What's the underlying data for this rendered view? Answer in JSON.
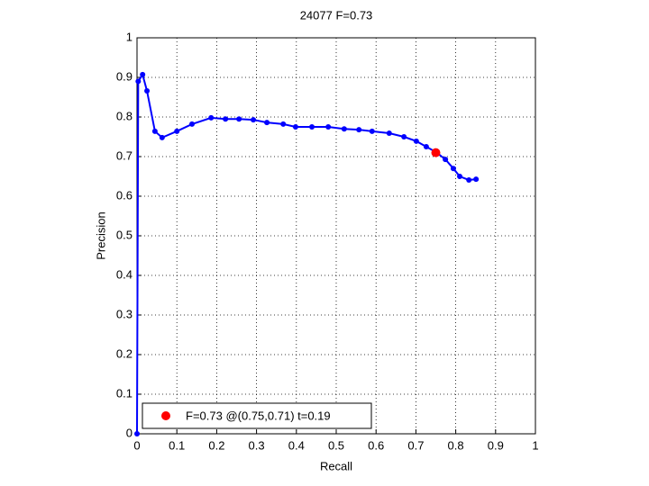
{
  "chart_data": {
    "type": "line",
    "title": "24077 F=0.73",
    "x_label": "Recall",
    "y_label": "Precision",
    "x": [
      0,
      0.003,
      0.014,
      0.025,
      0.045,
      0.063,
      0.1,
      0.138,
      0.186,
      0.222,
      0.256,
      0.292,
      0.326,
      0.367,
      0.398,
      0.439,
      0.48,
      0.52,
      0.557,
      0.59,
      0.633,
      0.67,
      0.701,
      0.726,
      0.751,
      0.774,
      0.794,
      0.81,
      0.833,
      0.851
    ],
    "series": [
      {
        "color": "#0000ff",
        "values": [
          0,
          0.89,
          0.907,
          0.866,
          0.764,
          0.748,
          0.764,
          0.782,
          0.798,
          0.795,
          0.795,
          0.793,
          0.786,
          0.782,
          0.775,
          0.775,
          0.775,
          0.77,
          0.768,
          0.764,
          0.759,
          0.75,
          0.739,
          0.725,
          0.711,
          0.693,
          0.67,
          0.65,
          0.641,
          0.643
        ]
      }
    ],
    "highlight": {
      "x": 0.75,
      "y": 0.71,
      "color": "#ff0000",
      "label": "F=0.73 @(0.75,0.71) t=0.19"
    },
    "xlim": [
      0,
      1
    ],
    "ylim": [
      0,
      1
    ],
    "xticks": [
      0,
      0.1,
      0.2,
      0.3,
      0.4,
      0.5,
      0.6,
      0.7,
      0.8,
      0.9,
      1
    ],
    "yticks": [
      0,
      0.1,
      0.2,
      0.3,
      0.4,
      0.5,
      0.6,
      0.7,
      0.8,
      0.9,
      1
    ],
    "grid": true,
    "legend_position": "lower left"
  }
}
